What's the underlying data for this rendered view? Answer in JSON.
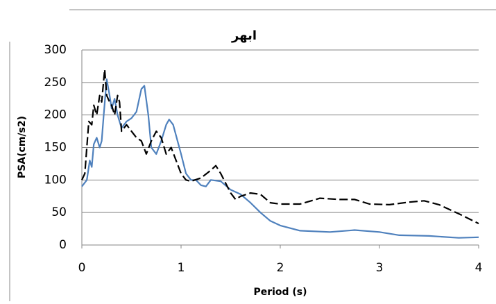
{
  "chart_data": {
    "type": "line",
    "title": "ابهر",
    "xlabel": "Period (s)",
    "ylabel": "PSA(cm/s2)",
    "xlim": [
      0,
      4
    ],
    "xticks": [
      0,
      1,
      2,
      3,
      4
    ],
    "ylim": [
      0,
      300
    ],
    "yticks": [
      0,
      50,
      100,
      150,
      200,
      250,
      300
    ],
    "grid": true,
    "series": [
      {
        "color": "#4f81bd",
        "dash": false,
        "x": [
          0,
          0.05,
          0.08,
          0.1,
          0.12,
          0.15,
          0.18,
          0.2,
          0.22,
          0.25,
          0.28,
          0.3,
          0.33,
          0.36,
          0.4,
          0.45,
          0.5,
          0.55,
          0.6,
          0.63,
          0.67,
          0.7,
          0.75,
          0.8,
          0.85,
          0.88,
          0.92,
          1.0,
          1.05,
          1.1,
          1.15,
          1.2,
          1.25,
          1.3,
          1.4,
          1.5,
          1.6,
          1.7,
          1.8,
          1.9,
          2.0,
          2.2,
          2.5,
          2.75,
          3.0,
          3.2,
          3.5,
          3.8,
          4.0
        ],
        "values": [
          90,
          100,
          130,
          120,
          155,
          165,
          150,
          160,
          200,
          255,
          230,
          210,
          225,
          200,
          180,
          190,
          195,
          205,
          240,
          245,
          200,
          150,
          140,
          160,
          185,
          193,
          185,
          140,
          110,
          100,
          100,
          92,
          90,
          100,
          98,
          85,
          78,
          65,
          50,
          37,
          30,
          22,
          20,
          23,
          20,
          15,
          14,
          11,
          12
        ]
      },
      {
        "color": "#000000",
        "dash": true,
        "x": [
          0,
          0.03,
          0.07,
          0.1,
          0.12,
          0.15,
          0.18,
          0.2,
          0.23,
          0.25,
          0.28,
          0.3,
          0.33,
          0.36,
          0.38,
          0.4,
          0.45,
          0.5,
          0.55,
          0.6,
          0.65,
          0.7,
          0.75,
          0.8,
          0.85,
          0.9,
          0.95,
          1.0,
          1.05,
          1.1,
          1.2,
          1.3,
          1.35,
          1.4,
          1.5,
          1.55,
          1.6,
          1.7,
          1.8,
          1.9,
          2.0,
          2.2,
          2.4,
          2.6,
          2.75,
          2.9,
          3.1,
          3.3,
          3.45,
          3.6,
          3.8,
          4.0
        ],
        "values": [
          100,
          110,
          190,
          185,
          215,
          200,
          230,
          220,
          270,
          230,
          220,
          215,
          200,
          230,
          220,
          175,
          185,
          175,
          165,
          160,
          140,
          160,
          175,
          165,
          140,
          150,
          130,
          110,
          100,
          98,
          103,
          115,
          122,
          110,
          80,
          70,
          75,
          80,
          78,
          65,
          63,
          63,
          72,
          70,
          70,
          63,
          62,
          66,
          68,
          62,
          48,
          33
        ]
      }
    ]
  }
}
